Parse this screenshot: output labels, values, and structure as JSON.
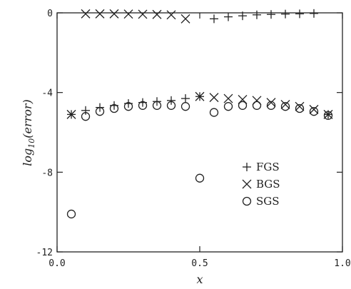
{
  "chart_data": {
    "type": "scatter",
    "xlabel": "x",
    "ylabel": "log10(error)",
    "ylabel_parts": {
      "base": "log",
      "sub": "10",
      "arg": "(error)"
    },
    "xlim": [
      0.0,
      1.0
    ],
    "ylim": [
      -12,
      0
    ],
    "x_ticks": [
      0.0,
      0.5,
      1.0
    ],
    "x_tick_labels": [
      "0.0",
      "0.5",
      "1.0"
    ],
    "y_ticks": [
      0,
      -4,
      -8,
      -12
    ],
    "y_tick_labels": [
      "0",
      "-4",
      "-8",
      "-12"
    ],
    "grid": false,
    "legend_position": "center-right",
    "series": [
      {
        "name": "FGS",
        "marker": "plus",
        "x": [
          0.05,
          0.1,
          0.15,
          0.2,
          0.25,
          0.3,
          0.35,
          0.4,
          0.45,
          0.5,
          0.55,
          0.6,
          0.65,
          0.7,
          0.75,
          0.8,
          0.85,
          0.9,
          0.95
        ],
        "y": [
          -5.1,
          -4.9,
          -4.75,
          -4.65,
          -4.55,
          -4.5,
          -4.45,
          -4.4,
          -4.3,
          -4.2,
          -0.3,
          -0.2,
          -0.15,
          -0.1,
          -0.08,
          -0.06,
          -0.05,
          -0.03,
          -5.1
        ]
      },
      {
        "name": "BGS",
        "marker": "cross",
        "x": [
          0.05,
          0.1,
          0.15,
          0.2,
          0.25,
          0.3,
          0.35,
          0.4,
          0.45,
          0.5,
          0.55,
          0.6,
          0.65,
          0.7,
          0.75,
          0.8,
          0.85,
          0.9,
          0.95
        ],
        "y": [
          -5.1,
          -0.05,
          -0.05,
          -0.05,
          -0.06,
          -0.07,
          -0.08,
          -0.1,
          -0.3,
          -4.2,
          -4.25,
          -4.3,
          -4.35,
          -4.4,
          -4.5,
          -4.6,
          -4.7,
          -4.85,
          -5.1
        ]
      },
      {
        "name": "SGS",
        "marker": "circle",
        "x": [
          0.05,
          0.1,
          0.15,
          0.2,
          0.25,
          0.3,
          0.35,
          0.4,
          0.45,
          0.5,
          0.55,
          0.6,
          0.65,
          0.7,
          0.75,
          0.8,
          0.85,
          0.9,
          0.95
        ],
        "y": [
          -10.1,
          -5.2,
          -4.95,
          -4.8,
          -4.7,
          -4.65,
          -4.65,
          -4.65,
          -4.7,
          -8.3,
          -5.0,
          -4.7,
          -4.65,
          -4.65,
          -4.65,
          -4.7,
          -4.8,
          -4.95,
          -5.15
        ]
      }
    ]
  }
}
